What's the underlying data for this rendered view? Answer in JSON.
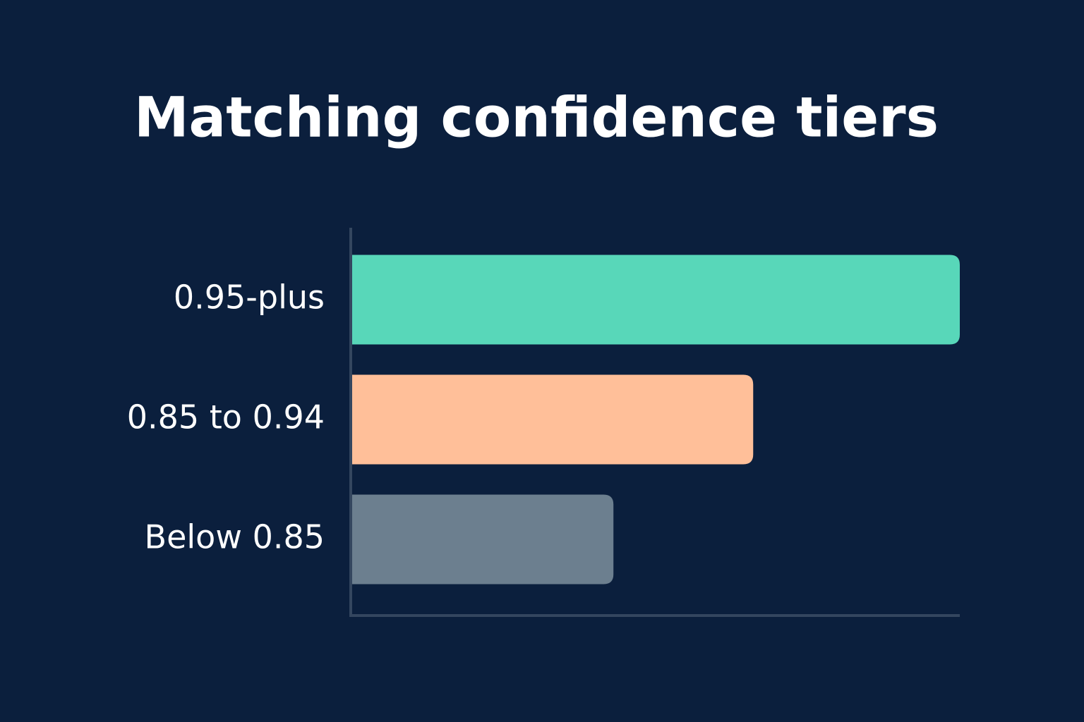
{
  "chart_data": {
    "type": "bar",
    "orientation": "horizontal",
    "title": "Matching confidence tiers",
    "categories": [
      "0.95-plus",
      "0.85 to 0.94",
      "Below 0.85"
    ],
    "values": [
      100,
      66,
      43
    ],
    "colors": [
      "#58d7b9",
      "#ffbf99",
      "#6c7f8f"
    ],
    "xlim": [
      0,
      100
    ]
  }
}
